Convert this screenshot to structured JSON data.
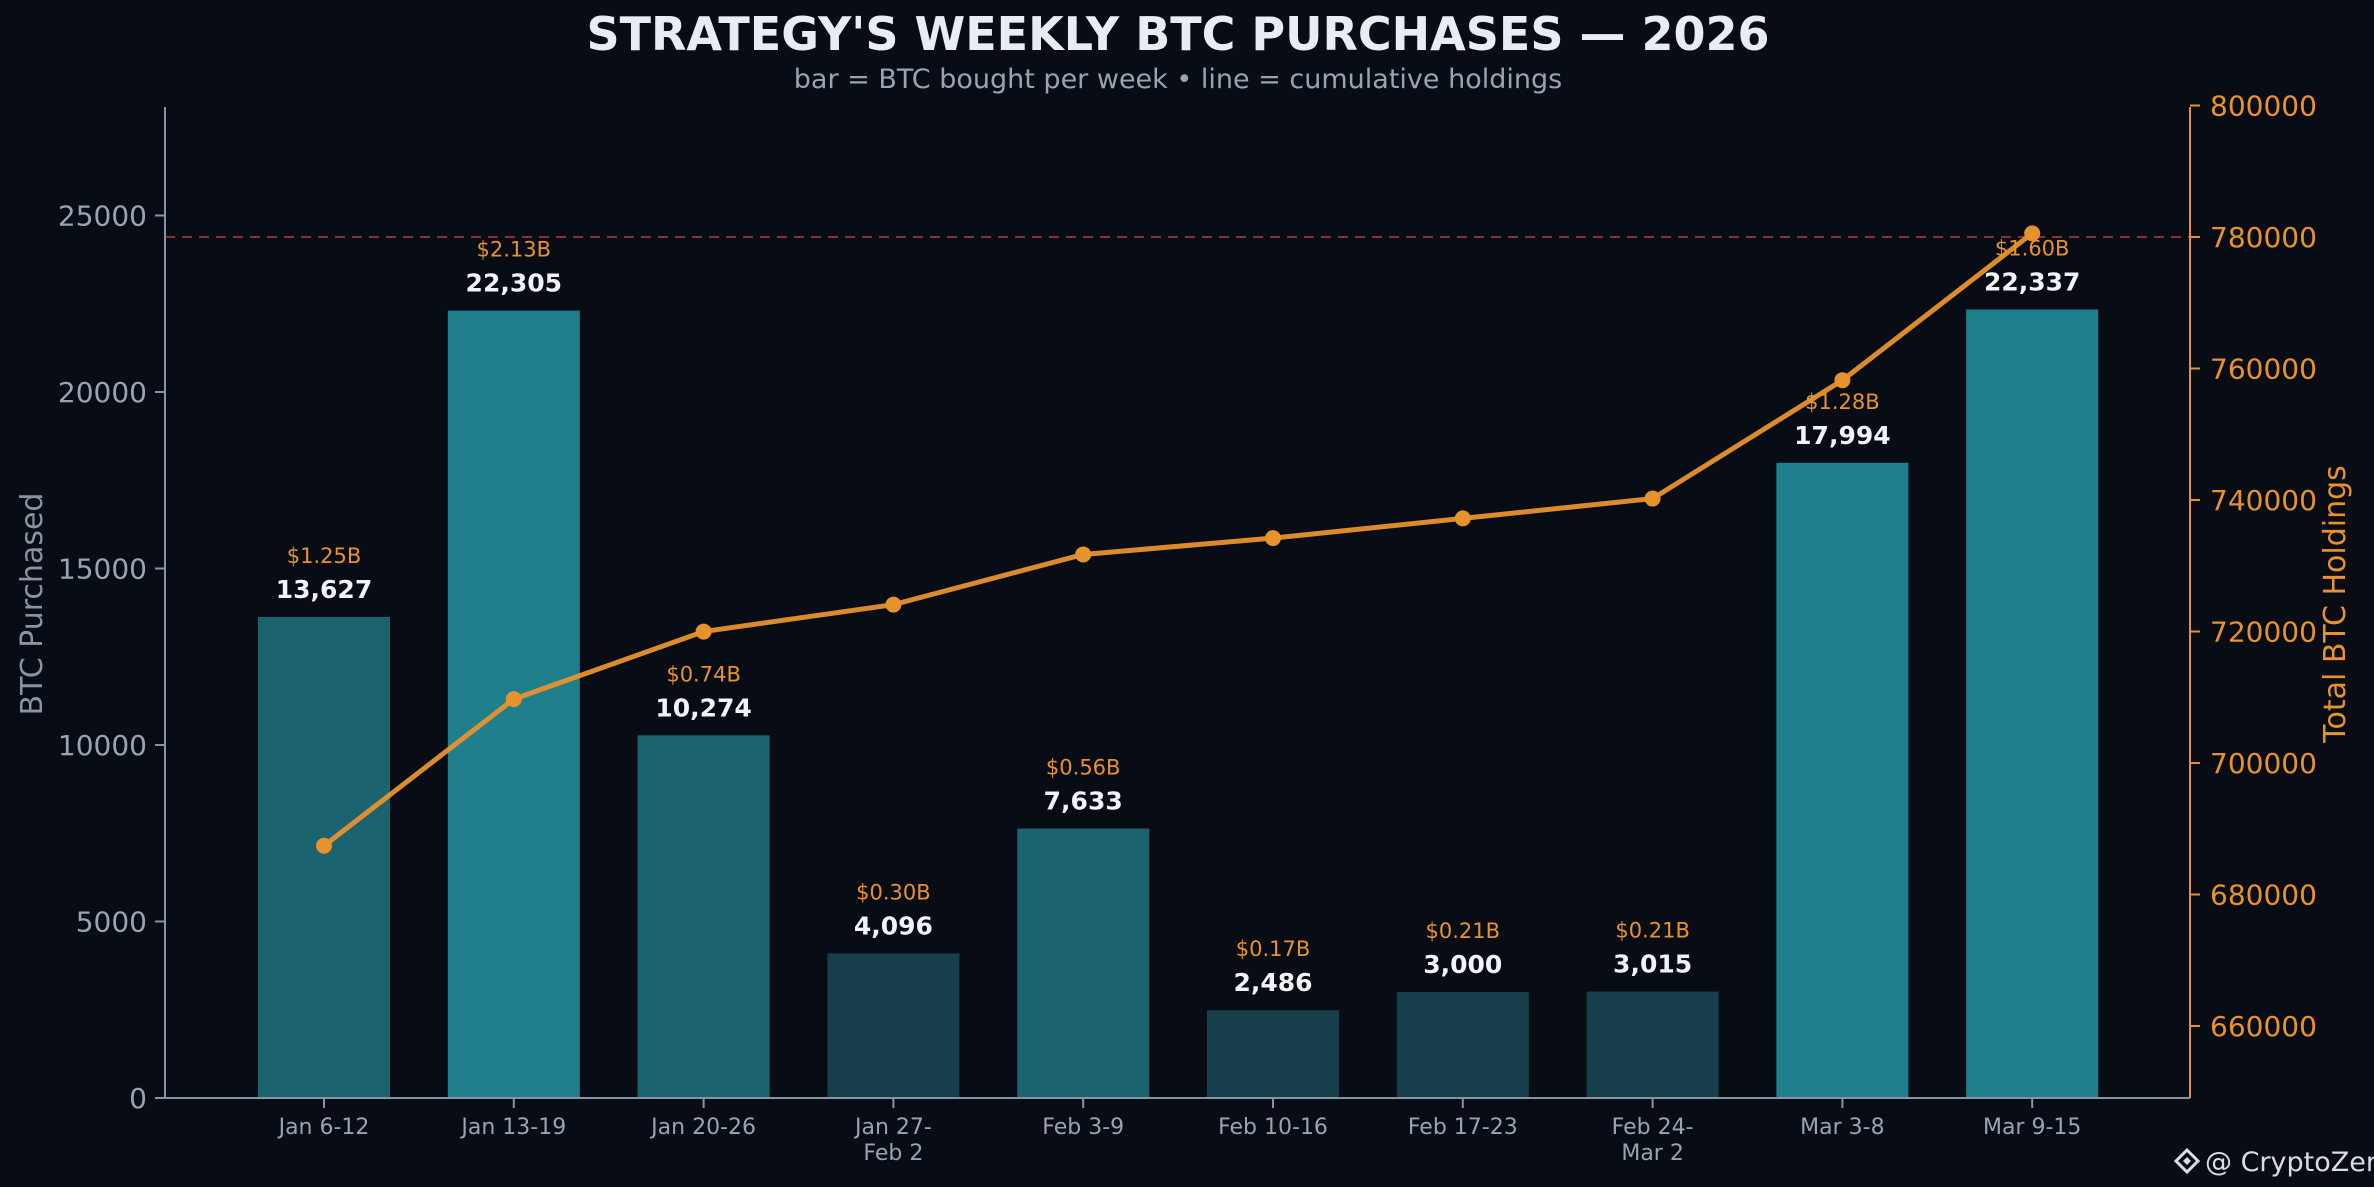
{
  "chart_data": {
    "type": "bar",
    "title": "STRATEGY'S WEEKLY BTC PURCHASES — 2026",
    "subtitle": "bar = BTC bought per week  •  line = cumulative holdings",
    "categories": [
      [
        "Jan 6-12"
      ],
      [
        "Jan 13-19"
      ],
      [
        "Jan 20-26"
      ],
      [
        "Jan 27-",
        "Feb 2"
      ],
      [
        "Feb 3-9"
      ],
      [
        "Feb 10-16"
      ],
      [
        "Feb 17-23"
      ],
      [
        "Feb 24-",
        "Mar 2"
      ],
      [
        "Mar 3-8"
      ],
      [
        "Mar 9-15"
      ]
    ],
    "bars": {
      "name": "BTC bought per week",
      "values": [
        13627,
        22305,
        10274,
        4096,
        7633,
        2486,
        3000,
        3015,
        17994,
        22337
      ],
      "value_labels": [
        "13,627",
        "22,305",
        "10,274",
        "4,096",
        "7,633",
        "2,486",
        "3,000",
        "3,015",
        "17,994",
        "22,337"
      ],
      "usd_labels": [
        "$1.25B",
        "$2.13B",
        "$0.74B",
        "$0.30B",
        "$0.56B",
        "$0.17B",
        "$0.21B",
        "$0.21B",
        "$1.28B",
        "$1.60B"
      ]
    },
    "line": {
      "name": "cumulative holdings",
      "values": [
        687410,
        709715,
        719989,
        724085,
        731718,
        734204,
        737204,
        740219,
        758213,
        780550
      ],
      "color": "#e8922d"
    },
    "y_left": {
      "label": "BTC Purchased",
      "ylim": [
        0,
        28000
      ],
      "ticks": [
        0,
        5000,
        10000,
        15000,
        20000,
        25000
      ]
    },
    "y_right": {
      "label": "Total BTC Holdings",
      "ylim": [
        650000,
        800000
      ],
      "ticks": [
        660000,
        680000,
        700000,
        720000,
        740000,
        760000,
        780000,
        800000
      ]
    },
    "reference_line": {
      "axis": "right",
      "value": 780000,
      "style": "dashed",
      "color": "#8b2e2e"
    },
    "grid": false,
    "colors": {
      "background": "#080c14",
      "bar_high": "#207f8c",
      "bar_mid": "#1b636e",
      "bar_low": "#163f4b",
      "line": "#e8922d"
    }
  },
  "watermark": {
    "text": "@ CryptoZeno",
    "icon": "diamond-logo-icon"
  }
}
